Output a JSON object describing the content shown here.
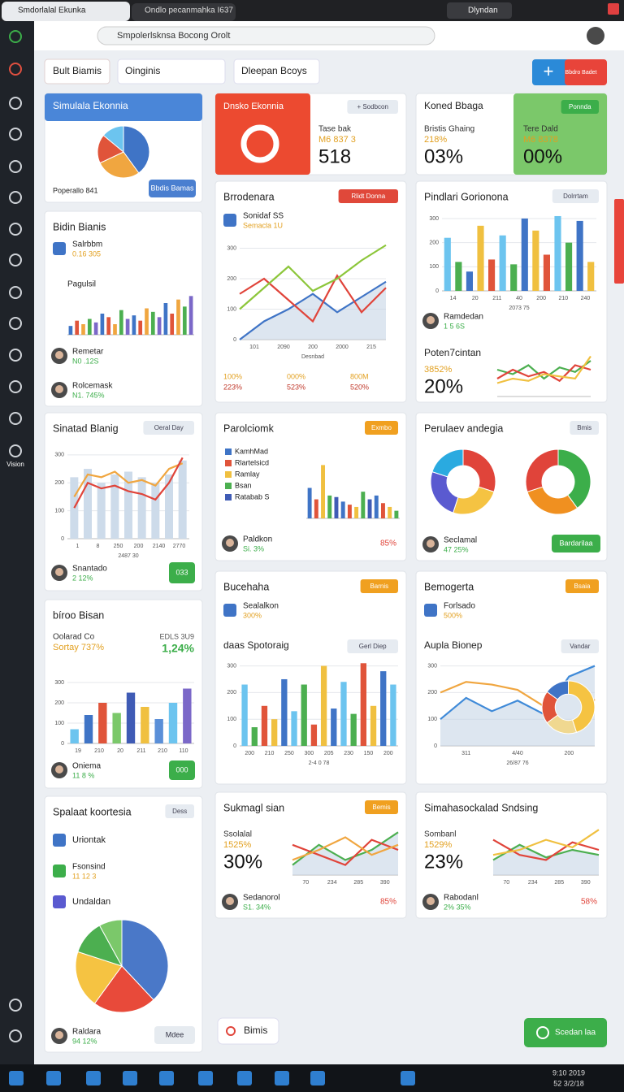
{
  "browser": {
    "tabs": [
      "Smdorlalal Ekunka",
      "Ondlo pecanmahka I637"
    ],
    "address": "Smpolerlsknsa Bocong Orolt",
    "profile": "Dlyndan"
  },
  "toolbar": {
    "button": "Bult Biamis",
    "dropdowns": [
      "Oinginis",
      "Dleepan Bcoys"
    ],
    "add": "Bbdro Badet"
  },
  "sidebar": {
    "label": "Vision"
  },
  "cards": [
    {
      "title": "Simulala Ekonnia",
      "chart": {
        "type": "pie",
        "values": [
          40,
          28,
          18,
          14
        ],
        "colors": [
          "#3f74c6",
          "#f0a640",
          "#e0543a",
          "#6cc4ef"
        ]
      },
      "people": [
        {
          "name": "Poperallo 841"
        }
      ],
      "button": "Bbdis Bamas",
      "button_color": "#4a7fd0"
    },
    {
      "title": "Bidin Bianis",
      "rows": [
        {
          "name": "Salrbbm",
          "sub": "0.16 305"
        }
      ],
      "chart": {
        "type": "bar",
        "label": "Pagulsil",
        "values": [
          5,
          8,
          6,
          9,
          7,
          12,
          10,
          6,
          14,
          9,
          11,
          8,
          15,
          13,
          10,
          18,
          12,
          20,
          16,
          22
        ],
        "colors": [
          "#3f74c6",
          "#e0543a",
          "#f0a640",
          "#4caf50",
          "#7b68c8"
        ],
        "ylim": [
          0,
          24
        ]
      },
      "people": [
        {
          "name": "Remetar",
          "sub": "N0 .12S"
        },
        {
          "name": "Rolcemask",
          "sub": "N1. 745%"
        }
      ]
    },
    {
      "title": "Sinatad Blanig",
      "badge": "Oeral Day",
      "chart": {
        "type": "combo",
        "values": [
          220,
          250,
          200,
          230,
          240,
          220,
          200,
          230,
          280
        ],
        "bar_color": "#cddbea",
        "series": [
          {
            "color": "#f0a640",
            "values": [
              150,
              230,
              220,
              240,
              200,
              210,
              190,
              250,
              270
            ]
          },
          {
            "color": "#e0443a",
            "values": [
              110,
              200,
              180,
              190,
              170,
              160,
              140,
              200,
              290
            ]
          }
        ],
        "ylim": [
          0,
          320
        ],
        "yticks": [
          0,
          100,
          200,
          300
        ],
        "xlabels": [
          "1",
          "8",
          "250",
          "200",
          "2140",
          "2770"
        ],
        "xlabel": "2487 30"
      },
      "people": [
        {
          "name": "Snantado",
          "sub": "2 12%"
        }
      ],
      "button": "033",
      "button_color": "#3cae4a"
    },
    {
      "title": "bíroo Bisan",
      "stat": {
        "name": "Oolarad Co",
        "sub": "Sortay 737%",
        "right": "EDLS 3U9",
        "big": "1,24%"
      },
      "chart": {
        "type": "bar",
        "values": [
          70,
          140,
          200,
          150,
          250,
          180,
          120,
          200,
          270
        ],
        "colors": [
          "#6cc4ef",
          "#3f74c6",
          "#e0543a",
          "#7bc86a",
          "#3f5bb5",
          "#f0c040",
          "#5a8fd8",
          "#6cc4ef",
          "#7b68c8"
        ],
        "ylim": [
          0,
          320
        ],
        "yticks": [
          0,
          100,
          200,
          300
        ],
        "xlabels": [
          "19",
          "210",
          "20",
          "211",
          "210",
          "110"
        ]
      },
      "people": [
        {
          "name": "Oniema",
          "sub": "11 8 %"
        }
      ],
      "button": "000",
      "button_color": "#3cae4a"
    },
    {
      "title": "Spalaat koortesia",
      "badge": "Dess",
      "rows": [
        {
          "name": "Uriontak"
        },
        {
          "name": "Fsonsind",
          "sub": "11 12 3"
        },
        {
          "name": "Undaldan"
        }
      ],
      "chart": {
        "type": "pie",
        "values": [
          38,
          22,
          20,
          12,
          8
        ],
        "colors": [
          "#4a78c8",
          "#e84a3a",
          "#f5c342",
          "#4caf50",
          "#7bc86a"
        ]
      },
      "people": [
        {
          "name": "Raldara",
          "sub": "94 12%"
        }
      ],
      "button": "Mdee"
    },
    {
      "title": "Dnsko Ekonnia",
      "badge": "+ Sodbcon",
      "stat": {
        "name": "Tase bak",
        "sub": "M6 837 3",
        "big": "518"
      }
    },
    {
      "title": "Brrodenara",
      "badge": "Rlidt Donna",
      "badge_color": "#e0483a",
      "rows": [
        {
          "name": "Sonidaf SS",
          "sub": "Semacla 1U"
        }
      ],
      "chart": {
        "type": "line",
        "area": true,
        "series": [
          {
            "color": "#3f74c6",
            "values": [
              0,
              60,
              100,
              150,
              90,
              140,
              190
            ]
          },
          {
            "color": "#e0443a",
            "values": [
              150,
              200,
              130,
              60,
              210,
              90,
              170
            ]
          },
          {
            "color": "#8cc63a",
            "values": [
              100,
              170,
              240,
              160,
              200,
              260,
              310
            ]
          }
        ],
        "ylim": [
          0,
          320
        ],
        "yticks": [
          0,
          100,
          200,
          300
        ],
        "xlabels": [
          "101",
          "2090",
          "200",
          "2000",
          "215"
        ],
        "xlabel": "Desnbad"
      },
      "metrics": [
        {
          "name": "100%",
          "sub": "223%"
        },
        {
          "name": "000%",
          "sub": "523%"
        },
        {
          "name": "800M",
          "sub": "520%"
        }
      ]
    },
    {
      "title": "Parolciomk",
      "badge": "Exmbo",
      "badge_color": "#f0a020",
      "legend": [
        {
          "name": "KamhMad",
          "color": "#3f74c6"
        },
        {
          "name": "Rlartelsicd",
          "color": "#e0543a"
        },
        {
          "name": "Ramlay",
          "color": "#f0c040"
        },
        {
          "name": "Bsan",
          "color": "#4caf50"
        },
        {
          "name": "Ratabab S",
          "color": "#3f5bb5"
        }
      ],
      "chart": {
        "type": "bar",
        "values": [
          40,
          25,
          70,
          30,
          28,
          22,
          18,
          15,
          35,
          25,
          30,
          20,
          15,
          10
        ],
        "colors": [
          "#3f74c6",
          "#e0543a",
          "#f0c040",
          "#4caf50",
          "#3f5bb5"
        ],
        "ylim": [
          0,
          80
        ]
      },
      "people": [
        {
          "name": "Paldkon",
          "sub": "Si. 3%",
          "right": "85%"
        }
      ]
    },
    {
      "title": "Bucehaha",
      "badge": "Barnis",
      "badge_color": "#f0a020",
      "rows": [
        {
          "name": "Sealalkon",
          "sub": "300%"
        }
      ],
      "title2": "daas Spotoraig",
      "badge2": "Gerl Diep",
      "chart": {
        "type": "bar",
        "values": [
          230,
          70,
          150,
          100,
          250,
          130,
          230,
          80,
          300,
          140,
          240,
          120,
          310,
          150,
          280,
          230
        ],
        "colors": [
          "#6cc4ef",
          "#4caf50",
          "#e0543a",
          "#f0c040",
          "#3f74c6"
        ],
        "ylim": [
          0,
          320
        ],
        "yticks": [
          0,
          100,
          200,
          300
        ],
        "xlabels": [
          "200",
          "210",
          "250",
          "300",
          "205",
          "230",
          "150",
          "200"
        ],
        "xlabel": "2-4 0 78"
      }
    },
    {
      "title": "Sukmagl sian",
      "badge": "Bemis",
      "badge_color": "#f0a020",
      "stat": {
        "name": "Ssolalal",
        "sub": "1525%",
        "big": "30%"
      },
      "chart": {
        "type": "line",
        "area": true,
        "series": [
          {
            "color": "#4caf50",
            "values": [
              20,
              60,
              30,
              50,
              85
            ]
          },
          {
            "color": "#e0443a",
            "values": [
              60,
              40,
              20,
              70,
              50
            ]
          },
          {
            "color": "#f0a640",
            "values": [
              30,
              50,
              75,
              40,
              60
            ]
          }
        ],
        "ylim": [
          0,
          100
        ],
        "xlabels": [
          "70",
          "234",
          "285",
          "390"
        ]
      },
      "people": [
        {
          "name": "Sedanorol",
          "sub": "S1. 34%",
          "right": "85%"
        }
      ]
    },
    {
      "title": "Koned Bbaga",
      "badge": "Ponnda",
      "badge_color": "#3cae4a",
      "stat": {
        "name": "Bristis Ghaing",
        "sub": "218%",
        "big": "03%"
      },
      "stat2": {
        "name": "Tere Dald",
        "sub": "M6 8378",
        "big": "00%"
      }
    },
    {
      "title": "Pindlari Gorionona",
      "badge": "Dolrrtam",
      "chart": {
        "type": "bar",
        "values": [
          220,
          120,
          80,
          270,
          130,
          230,
          110,
          300,
          250,
          150,
          310,
          200,
          290,
          120
        ],
        "colors": [
          "#6cc4ef",
          "#4caf50",
          "#3f74c6",
          "#f0c040",
          "#e0543a"
        ],
        "ylim": [
          0,
          320
        ],
        "yticks": [
          0,
          100,
          200,
          300
        ],
        "xlabels": [
          "14",
          "20",
          "211",
          "40",
          "200",
          "210",
          "240"
        ],
        "xlabel": "2073 75"
      },
      "people": [
        {
          "name": "Ramdedan",
          "sub": "1 5 6S"
        }
      ],
      "title2": "Poten7cintan",
      "stat": {
        "sub": "3852%",
        "big": "20%"
      },
      "chart2": {
        "type": "line",
        "series": [
          {
            "color": "#4caf50",
            "values": [
              60,
              50,
              70,
              40,
              65,
              55,
              80
            ]
          },
          {
            "color": "#e0443a",
            "values": [
              40,
              60,
              45,
              55,
              35,
              70,
              60
            ]
          },
          {
            "color": "#f0c040",
            "values": [
              30,
              40,
              35,
              50,
              45,
              40,
              90
            ]
          }
        ],
        "ylim": [
          0,
          100
        ]
      }
    },
    {
      "title": "Perulaev andegia",
      "badge": "Bmis",
      "chart": {
        "type": "donut",
        "values": [
          30,
          25,
          25,
          20
        ],
        "colors": [
          "#e0443a",
          "#f5c342",
          "#5a5ad0",
          "#2aaae0"
        ]
      },
      "chart2": {
        "type": "donut",
        "values": [
          40,
          30,
          30
        ],
        "colors": [
          "#3cae4a",
          "#f09020",
          "#e0443a"
        ]
      },
      "people": [
        {
          "name": "Seclamal",
          "sub": "47 25%"
        }
      ],
      "button": "Bardarilaa",
      "button_color": "#3cae4a"
    },
    {
      "title": "Bemogerta",
      "badge": "Bsaia",
      "badge_color": "#f0a020",
      "rows": [
        {
          "name": "Forlsado",
          "sub": "500%"
        }
      ],
      "title2": "Aupla Bionep",
      "badge2": "Vandar",
      "chart": {
        "type": "line",
        "area": true,
        "series": [
          {
            "color": "#3f8ad8",
            "values": [
              100,
              180,
              130,
              170,
              120,
              260,
              300
            ]
          },
          {
            "color": "#f0a640",
            "values": [
              200,
              240,
              230,
              210,
              150,
              230,
              170
            ]
          }
        ],
        "ylim": [
          0,
          320
        ],
        "yticks": [
          0,
          100,
          200,
          300
        ],
        "xlabels": [
          "311",
          "4/40",
          "200"
        ],
        "xlabel": "26/87 76"
      },
      "chart2": {
        "type": "donut",
        "values": [
          45,
          20,
          20,
          15
        ],
        "colors": [
          "#f5c342",
          "#f0d890",
          "#e0543a",
          "#3f74c6"
        ]
      }
    },
    {
      "title": "Simahasockalad Sndsing",
      "stat": {
        "name": "Sombanl",
        "sub": "1529%",
        "big": "23%"
      },
      "chart": {
        "type": "line",
        "area": true,
        "series": [
          {
            "color": "#4caf50",
            "values": [
              30,
              60,
              35,
              50,
              40
            ]
          },
          {
            "color": "#e0443a",
            "values": [
              70,
              40,
              30,
              65,
              50
            ]
          },
          {
            "color": "#f0c040",
            "values": [
              40,
              50,
              70,
              55,
              90
            ]
          }
        ],
        "ylim": [
          0,
          100
        ],
        "xlabels": [
          "70",
          "234",
          "285",
          "390"
        ]
      },
      "people": [
        {
          "name": "Rabodanl",
          "sub": "2% 35%",
          "right": "58%"
        }
      ]
    }
  ],
  "footer": {
    "search": "Bimis",
    "button": "Scedan laa"
  },
  "taskbar": {
    "time": "9:10 2019",
    "date": "52 3/2/18"
  }
}
